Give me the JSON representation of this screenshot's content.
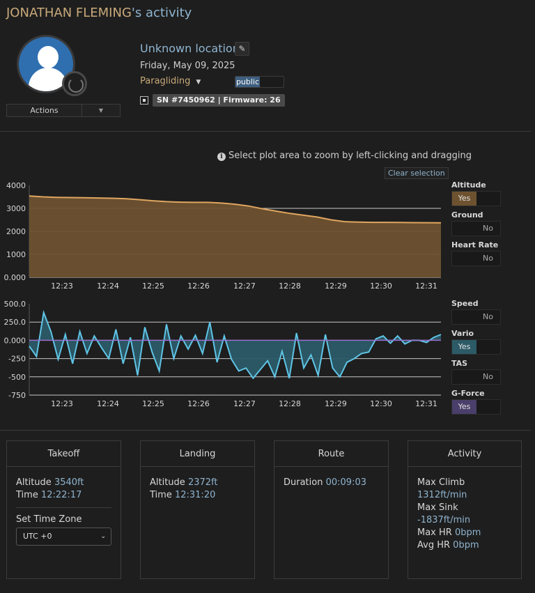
{
  "header": {
    "name": "JONATHAN FLEMING",
    "suffix": "'s activity"
  },
  "profile": {
    "actions_label": "Actions",
    "location": "Unknown location",
    "date": "Friday, May 09, 2025",
    "sport": "Paragliding",
    "visibility": "public",
    "device_badge": "SN #7450962 | Firmware: 26"
  },
  "hint": {
    "text": "Select plot area to zoom by left-clicking and dragging",
    "clear_label": "Clear selection"
  },
  "colors": {
    "altitude_fill": "#6e5230",
    "altitude_line": "#e0a660",
    "vario_fill": "#2c5a67",
    "vario_line": "#5fc5e6",
    "zero_line": "#9b6fd0",
    "link": "#8fb4cf"
  },
  "chart_data": [
    {
      "type": "area",
      "series": [
        {
          "name": "Altitude",
          "values": [
            3540,
            3500,
            3480,
            3470,
            3460,
            3450,
            3440,
            3420,
            3380,
            3330,
            3290,
            3270,
            3260,
            3260,
            3230,
            3180,
            3100,
            2980,
            2880,
            2780,
            2700,
            2620,
            2500,
            2420,
            2400,
            2390,
            2390,
            2385,
            2380,
            2375,
            2372
          ]
        }
      ],
      "x": [
        "12:22:17",
        "12:22:35",
        "12:22:53",
        "12:23:11",
        "12:23:29",
        "12:23:47",
        "12:24:05",
        "12:24:23",
        "12:24:41",
        "12:24:59",
        "12:25:17",
        "12:25:35",
        "12:25:53",
        "12:26:11",
        "12:26:29",
        "12:26:47",
        "12:27:05",
        "12:27:23",
        "12:27:41",
        "12:27:59",
        "12:28:17",
        "12:28:35",
        "12:28:53",
        "12:29:11",
        "12:29:29",
        "12:29:47",
        "12:30:05",
        "12:30:23",
        "12:30:41",
        "12:30:59",
        "12:31:20"
      ],
      "x_ticks": [
        "12:23",
        "12:24",
        "12:25",
        "12:26",
        "12:27",
        "12:28",
        "12:29",
        "12:30",
        "12:31"
      ],
      "y_ticks": [
        "4000",
        "3000",
        "2000",
        "1000",
        "0.000"
      ],
      "ylim": [
        0,
        4000
      ],
      "grid": true
    },
    {
      "type": "line",
      "series": [
        {
          "name": "Vario",
          "values": [
            -80,
            -220,
            380,
            120,
            -260,
            80,
            -320,
            120,
            -180,
            60,
            -100,
            -250,
            150,
            -320,
            40,
            -480,
            180,
            -160,
            -420,
            220,
            -250,
            60,
            -120,
            70,
            -180,
            250,
            -300,
            60,
            -260,
            -420,
            -380,
            -520,
            -400,
            -280,
            -500,
            -150,
            -520,
            100,
            -380,
            -200,
            -480,
            80,
            -380,
            -500,
            -300,
            -250,
            -180,
            -160,
            20,
            60,
            -40,
            60,
            -50,
            0,
            0,
            -30,
            40,
            80
          ]
        }
      ],
      "x_ticks": [
        "12:23",
        "12:24",
        "12:25",
        "12:26",
        "12:27",
        "12:28",
        "12:29",
        "12:30",
        "12:31"
      ],
      "y_ticks": [
        "500.0",
        "250.0",
        "0.000",
        "-250",
        "-500",
        "-750"
      ],
      "ylim": [
        -750,
        500
      ],
      "grid": true
    }
  ],
  "toggles": [
    {
      "label": "Altitude",
      "value": "Yes",
      "on": true,
      "color": "#6e5230"
    },
    {
      "label": "Ground",
      "value": "No",
      "on": false
    },
    {
      "label": "Heart Rate",
      "value": "No",
      "on": false
    },
    {
      "label": "Speed",
      "value": "No",
      "on": false
    },
    {
      "label": "Vario",
      "value": "Yes",
      "on": true,
      "color": "#2c5a67"
    },
    {
      "label": "TAS",
      "value": "No",
      "on": false
    },
    {
      "label": "G-Force",
      "value": "Yes",
      "on": true,
      "color": "#4a3f6a"
    }
  ],
  "panels": {
    "takeoff": {
      "title": "Takeoff",
      "altitude_label": "Altitude",
      "altitude": "3540ft",
      "time_label": "Time",
      "time": "12:22:17",
      "tz_label": "Set Time Zone",
      "tz_value": "UTC +0"
    },
    "landing": {
      "title": "Landing",
      "altitude_label": "Altitude",
      "altitude": "2372ft",
      "time_label": "Time",
      "time": "12:31:20"
    },
    "route": {
      "title": "Route",
      "duration_label": "Duration",
      "duration": "00:09:03"
    },
    "activity": {
      "title": "Activity",
      "max_climb_label": "Max Climb",
      "max_climb": "1312ft/min",
      "max_sink_label": "Max Sink",
      "max_sink": "-1837ft/min",
      "max_hr_label": "Max HR",
      "max_hr": "0bpm",
      "avg_hr_label": "Avg HR",
      "avg_hr": "0bpm"
    }
  }
}
